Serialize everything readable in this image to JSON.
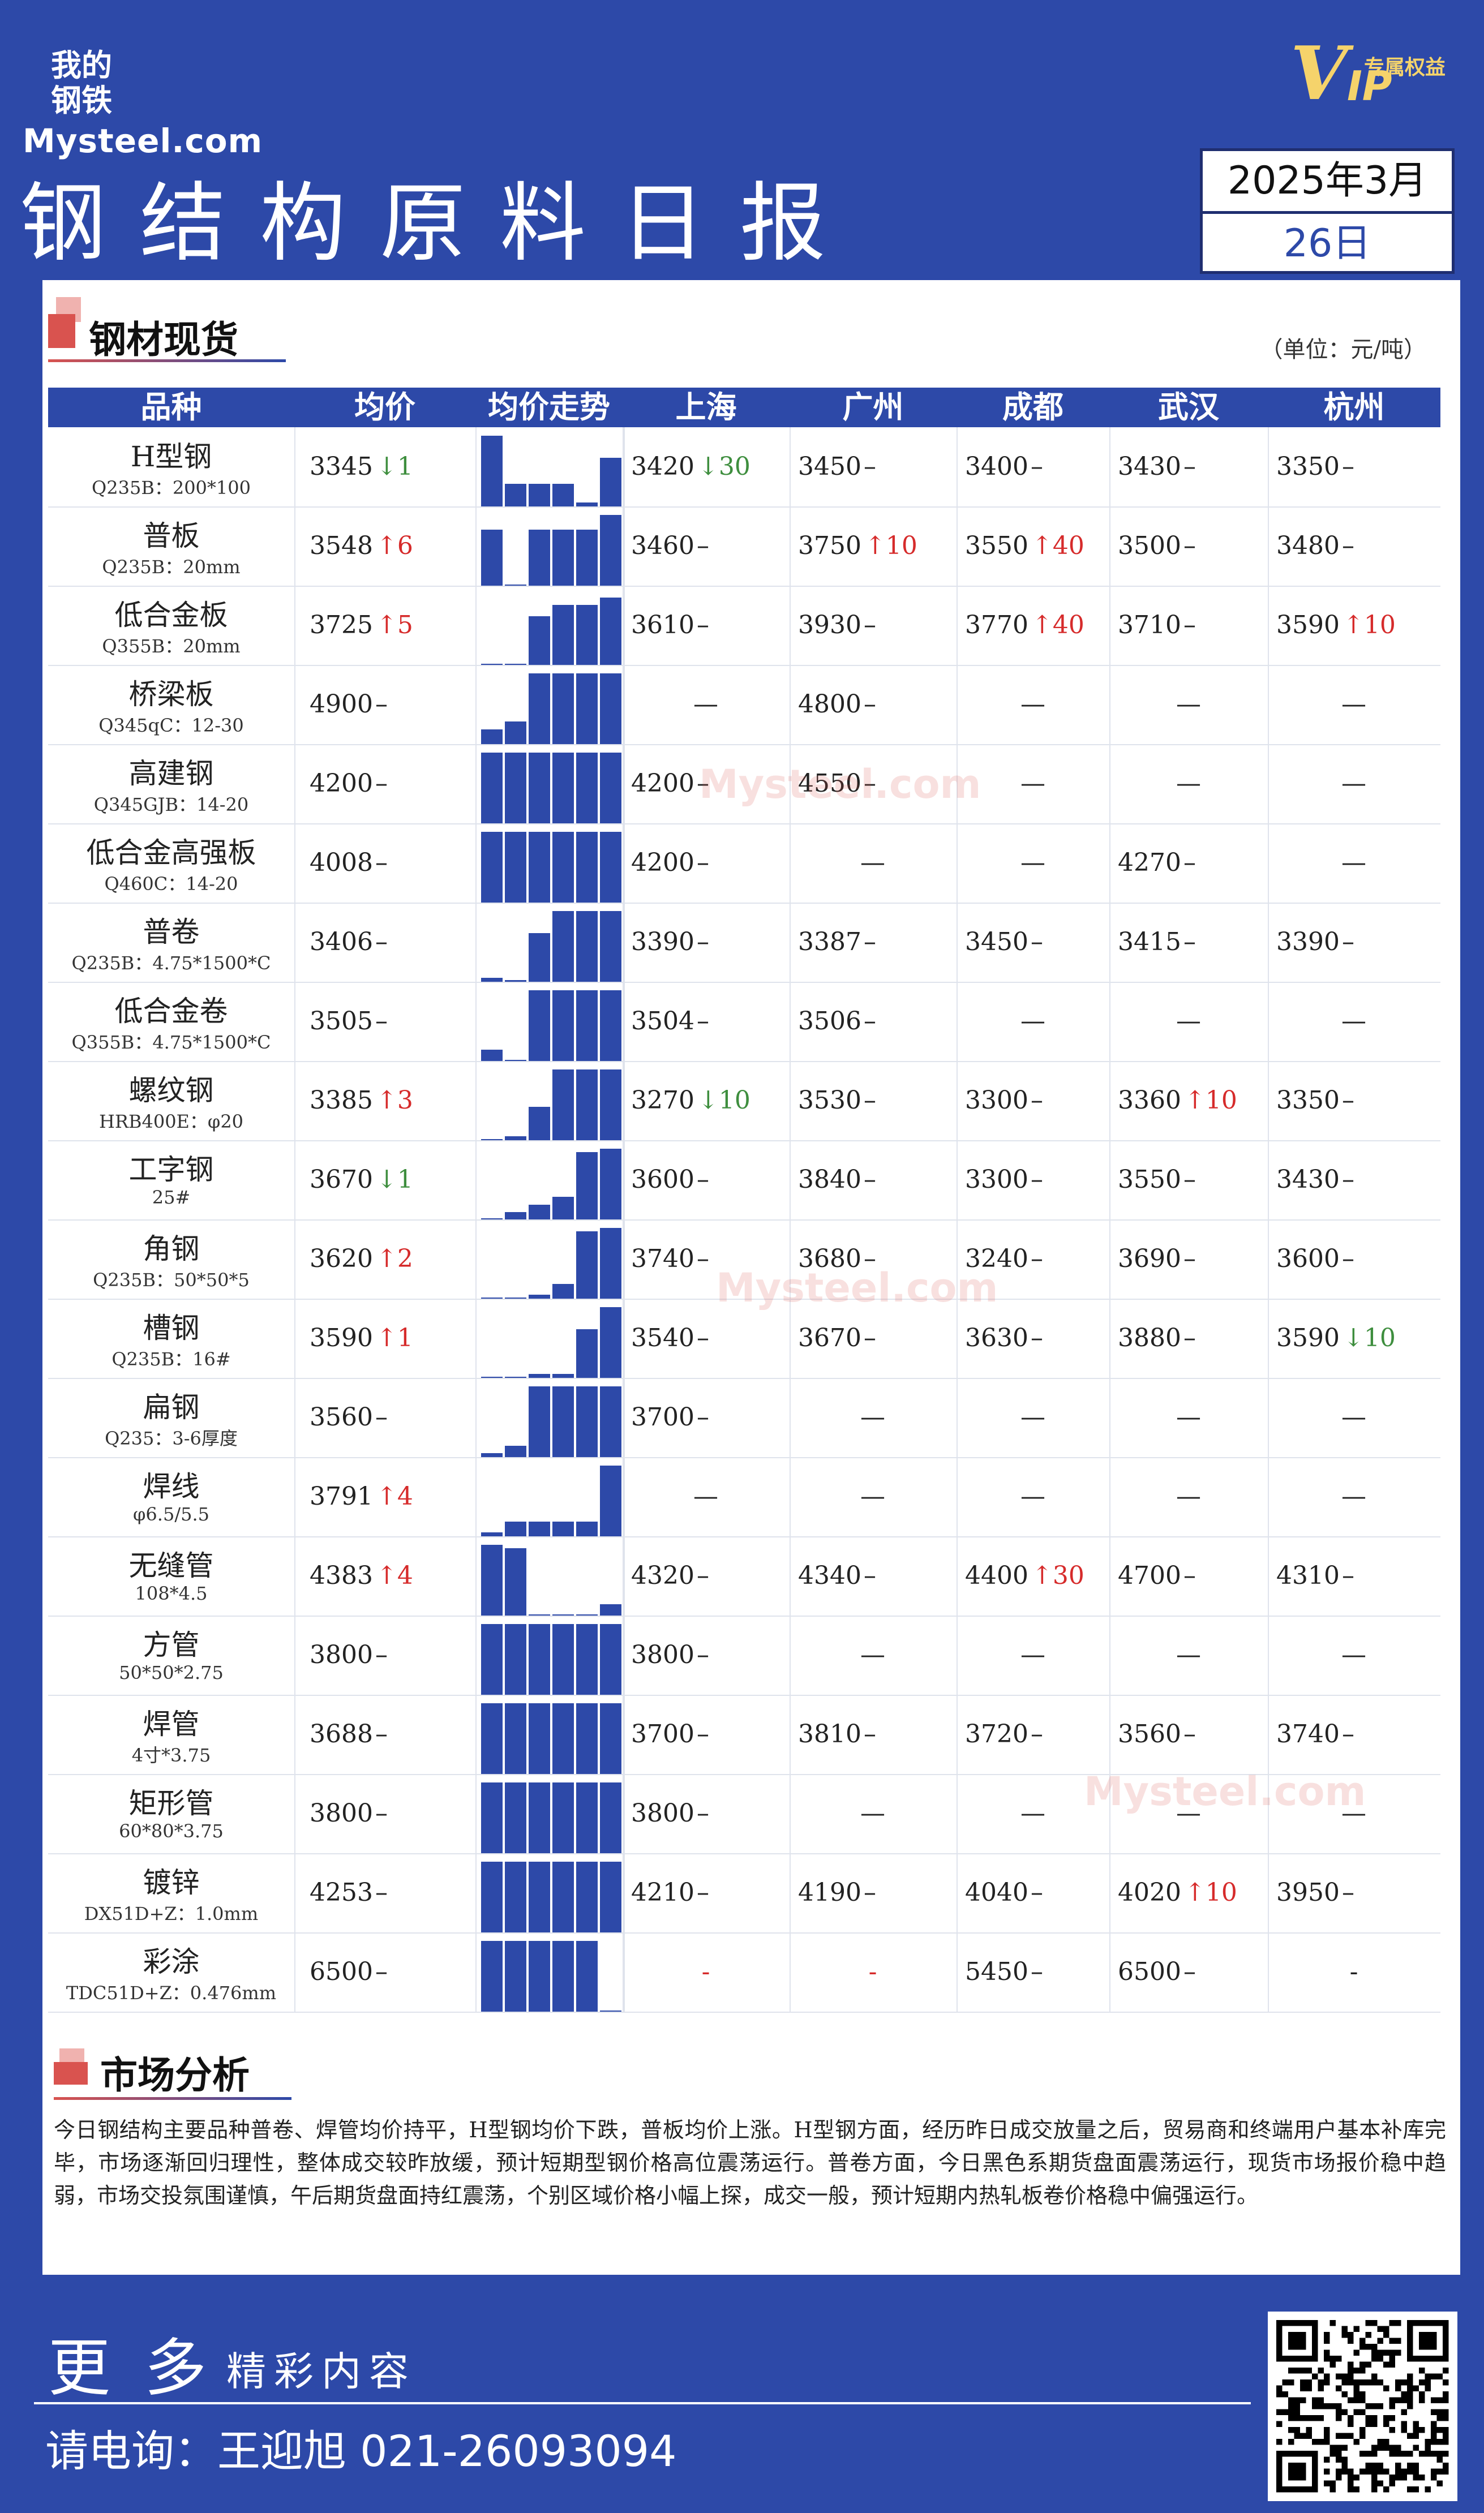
{
  "logo": {
    "line1": "我的",
    "line2": "钢铁",
    "en": "Mysteel.com"
  },
  "vip": {
    "letter_v": "V",
    "letters_ip": "IP",
    "label": "专属权益"
  },
  "title": "钢结构原料日报",
  "date": {
    "year_month": "2025年3月",
    "day": "26日"
  },
  "section1": {
    "title": "钢材现货",
    "unit": "（单位：元/吨）"
  },
  "table": {
    "headers": [
      "品种",
      "均价",
      "均价走势",
      "上海",
      "广州",
      "成都",
      "武汉",
      "杭州"
    ],
    "rows": [
      {
        "name": "H型钢",
        "spec": "Q235B：200*100",
        "avg": {
          "v": "3345",
          "d": "1",
          "dir": "down"
        },
        "trend": [
          0.95,
          0.3,
          0.3,
          0.3,
          0.05,
          0.65
        ],
        "cells": [
          {
            "v": "3420",
            "d": "30",
            "dir": "down"
          },
          {
            "v": "3450",
            "d": "",
            "dir": "flat"
          },
          {
            "v": "3400",
            "d": "",
            "dir": "flat"
          },
          {
            "v": "3430",
            "d": "",
            "dir": "flat"
          },
          {
            "v": "3350",
            "d": "",
            "dir": "flat"
          }
        ]
      },
      {
        "name": "普板",
        "spec": "Q235B：20mm",
        "avg": {
          "v": "3548",
          "d": "6",
          "dir": "up"
        },
        "trend": [
          0.75,
          0.0,
          0.75,
          0.75,
          0.75,
          0.95
        ],
        "cells": [
          {
            "v": "3460",
            "d": "",
            "dir": "flat"
          },
          {
            "v": "3750",
            "d": "10",
            "dir": "up"
          },
          {
            "v": "3550",
            "d": "40",
            "dir": "up"
          },
          {
            "v": "3500",
            "d": "",
            "dir": "flat"
          },
          {
            "v": "3480",
            "d": "",
            "dir": "flat"
          }
        ]
      },
      {
        "name": "低合金板",
        "spec": "Q355B：20mm",
        "avg": {
          "v": "3725",
          "d": "5",
          "dir": "up"
        },
        "trend": [
          0.0,
          0.0,
          0.65,
          0.8,
          0.8,
          0.9
        ],
        "cells": [
          {
            "v": "3610",
            "d": "",
            "dir": "flat"
          },
          {
            "v": "3930",
            "d": "",
            "dir": "flat"
          },
          {
            "v": "3770",
            "d": "40",
            "dir": "up"
          },
          {
            "v": "3710",
            "d": "",
            "dir": "flat"
          },
          {
            "v": "3590",
            "d": "10",
            "dir": "up"
          }
        ]
      },
      {
        "name": "桥梁板",
        "spec": "Q345qC：12-30",
        "avg": {
          "v": "4900",
          "d": "",
          "dir": "flat"
        },
        "trend": [
          0.2,
          0.3,
          0.95,
          0.95,
          0.95,
          0.95
        ],
        "cells": [
          {
            "v": "—",
            "d": "",
            "dir": "none"
          },
          {
            "v": "4800",
            "d": "",
            "dir": "flat"
          },
          {
            "v": "—",
            "d": "",
            "dir": "none"
          },
          {
            "v": "—",
            "d": "",
            "dir": "none"
          },
          {
            "v": "—",
            "d": "",
            "dir": "none"
          }
        ]
      },
      {
        "name": "高建钢",
        "spec": "Q345GJB：14-20",
        "avg": {
          "v": "4200",
          "d": "",
          "dir": "flat"
        },
        "trend": [
          0.95,
          0.95,
          0.95,
          0.95,
          0.95,
          0.95
        ],
        "cells": [
          {
            "v": "4200",
            "d": "",
            "dir": "flat"
          },
          {
            "v": "4550",
            "d": "",
            "dir": "flat"
          },
          {
            "v": "—",
            "d": "",
            "dir": "none"
          },
          {
            "v": "—",
            "d": "",
            "dir": "none"
          },
          {
            "v": "—",
            "d": "",
            "dir": "none"
          }
        ]
      },
      {
        "name": "低合金高强板",
        "spec": "Q460C：14-20",
        "avg": {
          "v": "4008",
          "d": "",
          "dir": "flat"
        },
        "trend": [
          0.95,
          0.95,
          0.95,
          0.95,
          0.95,
          0.95
        ],
        "cells": [
          {
            "v": "4200",
            "d": "",
            "dir": "flat"
          },
          {
            "v": "—",
            "d": "",
            "dir": "none"
          },
          {
            "v": "—",
            "d": "",
            "dir": "none"
          },
          {
            "v": "4270",
            "d": "",
            "dir": "flat"
          },
          {
            "v": "—",
            "d": "",
            "dir": "none"
          }
        ]
      },
      {
        "name": "普卷",
        "spec": "Q235B：4.75*1500*C",
        "avg": {
          "v": "3406",
          "d": "",
          "dir": "flat"
        },
        "trend": [
          0.05,
          0.02,
          0.65,
          0.95,
          0.95,
          0.95
        ],
        "cells": [
          {
            "v": "3390",
            "d": "",
            "dir": "flat"
          },
          {
            "v": "3387",
            "d": "",
            "dir": "flat"
          },
          {
            "v": "3450",
            "d": "",
            "dir": "flat"
          },
          {
            "v": "3415",
            "d": "",
            "dir": "flat"
          },
          {
            "v": "3390",
            "d": "",
            "dir": "flat"
          }
        ]
      },
      {
        "name": "低合金卷",
        "spec": "Q355B：4.75*1500*C",
        "avg": {
          "v": "3505",
          "d": "",
          "dir": "flat"
        },
        "trend": [
          0.15,
          0.0,
          0.95,
          0.95,
          0.95,
          0.95
        ],
        "cells": [
          {
            "v": "3504",
            "d": "",
            "dir": "flat"
          },
          {
            "v": "3506",
            "d": "",
            "dir": "flat"
          },
          {
            "v": "—",
            "d": "",
            "dir": "none"
          },
          {
            "v": "—",
            "d": "",
            "dir": "none"
          },
          {
            "v": "—",
            "d": "",
            "dir": "none"
          }
        ]
      },
      {
        "name": "螺纹钢",
        "spec": "HRB400E：φ20",
        "avg": {
          "v": "3385",
          "d": "3",
          "dir": "up"
        },
        "trend": [
          0.0,
          0.05,
          0.45,
          0.95,
          0.95,
          0.95
        ],
        "cells": [
          {
            "v": "3270",
            "d": "10",
            "dir": "down"
          },
          {
            "v": "3530",
            "d": "",
            "dir": "flat"
          },
          {
            "v": "3300",
            "d": "",
            "dir": "flat"
          },
          {
            "v": "3360",
            "d": "10",
            "dir": "up"
          },
          {
            "v": "3350",
            "d": "",
            "dir": "flat"
          }
        ]
      },
      {
        "name": "工字钢",
        "spec": "25#",
        "avg": {
          "v": "3670",
          "d": "1",
          "dir": "down"
        },
        "trend": [
          0.0,
          0.1,
          0.2,
          0.3,
          0.9,
          0.95
        ],
        "cells": [
          {
            "v": "3600",
            "d": "",
            "dir": "flat"
          },
          {
            "v": "3840",
            "d": "",
            "dir": "flat"
          },
          {
            "v": "3300",
            "d": "",
            "dir": "flat"
          },
          {
            "v": "3550",
            "d": "",
            "dir": "flat"
          },
          {
            "v": "3430",
            "d": "",
            "dir": "flat"
          }
        ]
      },
      {
        "name": "角钢",
        "spec": "Q235B：50*50*5",
        "avg": {
          "v": "3620",
          "d": "2",
          "dir": "up"
        },
        "trend": [
          0.0,
          0.0,
          0.05,
          0.2,
          0.9,
          0.95
        ],
        "cells": [
          {
            "v": "3740",
            "d": "",
            "dir": "flat"
          },
          {
            "v": "3680",
            "d": "",
            "dir": "flat"
          },
          {
            "v": "3240",
            "d": "",
            "dir": "flat"
          },
          {
            "v": "3690",
            "d": "",
            "dir": "flat"
          },
          {
            "v": "3600",
            "d": "",
            "dir": "flat"
          }
        ]
      },
      {
        "name": "槽钢",
        "spec": "Q235B：16#",
        "avg": {
          "v": "3590",
          "d": "1",
          "dir": "up"
        },
        "trend": [
          0.0,
          0.0,
          0.05,
          0.05,
          0.65,
          0.95
        ],
        "cells": [
          {
            "v": "3540",
            "d": "",
            "dir": "flat"
          },
          {
            "v": "3670",
            "d": "",
            "dir": "flat"
          },
          {
            "v": "3630",
            "d": "",
            "dir": "flat"
          },
          {
            "v": "3880",
            "d": "",
            "dir": "flat"
          },
          {
            "v": "3590",
            "d": "10",
            "dir": "down"
          }
        ]
      },
      {
        "name": "扁钢",
        "spec": "Q235：3-6厚度",
        "avg": {
          "v": "3560",
          "d": "",
          "dir": "flat"
        },
        "trend": [
          0.05,
          0.15,
          0.95,
          0.95,
          0.95,
          0.95
        ],
        "cells": [
          {
            "v": "3700",
            "d": "",
            "dir": "flat"
          },
          {
            "v": "—",
            "d": "",
            "dir": "none"
          },
          {
            "v": "—",
            "d": "",
            "dir": "none"
          },
          {
            "v": "—",
            "d": "",
            "dir": "none"
          },
          {
            "v": "—",
            "d": "",
            "dir": "none"
          }
        ]
      },
      {
        "name": "焊线",
        "spec": "φ6.5/5.5",
        "avg": {
          "v": "3791",
          "d": "4",
          "dir": "up"
        },
        "trend": [
          0.05,
          0.2,
          0.2,
          0.2,
          0.2,
          0.95
        ],
        "cells": [
          {
            "v": "—",
            "d": "",
            "dir": "none"
          },
          {
            "v": "—",
            "d": "",
            "dir": "none"
          },
          {
            "v": "—",
            "d": "",
            "dir": "none"
          },
          {
            "v": "—",
            "d": "",
            "dir": "none"
          },
          {
            "v": "—",
            "d": "",
            "dir": "none"
          }
        ]
      },
      {
        "name": "无缝管",
        "spec": "108*4.5",
        "avg": {
          "v": "4383",
          "d": "4",
          "dir": "up"
        },
        "trend": [
          0.95,
          0.9,
          0.0,
          0.0,
          0.0,
          0.15
        ],
        "cells": [
          {
            "v": "4320",
            "d": "",
            "dir": "flat"
          },
          {
            "v": "4340",
            "d": "",
            "dir": "flat"
          },
          {
            "v": "4400",
            "d": "30",
            "dir": "up"
          },
          {
            "v": "4700",
            "d": "",
            "dir": "flat"
          },
          {
            "v": "4310",
            "d": "",
            "dir": "flat"
          }
        ]
      },
      {
        "name": "方管",
        "spec": "50*50*2.75",
        "avg": {
          "v": "3800",
          "d": "",
          "dir": "flat"
        },
        "trend": [
          0.95,
          0.95,
          0.95,
          0.95,
          0.95,
          0.95
        ],
        "cells": [
          {
            "v": "3800",
            "d": "",
            "dir": "flat"
          },
          {
            "v": "—",
            "d": "",
            "dir": "none"
          },
          {
            "v": "—",
            "d": "",
            "dir": "none"
          },
          {
            "v": "—",
            "d": "",
            "dir": "none"
          },
          {
            "v": "—",
            "d": "",
            "dir": "none"
          }
        ]
      },
      {
        "name": "焊管",
        "spec": "4寸*3.75",
        "avg": {
          "v": "3688",
          "d": "",
          "dir": "flat"
        },
        "trend": [
          0.95,
          0.95,
          0.95,
          0.95,
          0.95,
          0.95
        ],
        "cells": [
          {
            "v": "3700",
            "d": "",
            "dir": "flat"
          },
          {
            "v": "3810",
            "d": "",
            "dir": "flat"
          },
          {
            "v": "3720",
            "d": "",
            "dir": "flat"
          },
          {
            "v": "3560",
            "d": "",
            "dir": "flat"
          },
          {
            "v": "3740",
            "d": "",
            "dir": "flat"
          }
        ]
      },
      {
        "name": "矩形管",
        "spec": "60*80*3.75",
        "avg": {
          "v": "3800",
          "d": "",
          "dir": "flat"
        },
        "trend": [
          0.95,
          0.95,
          0.95,
          0.95,
          0.95,
          0.95
        ],
        "cells": [
          {
            "v": "3800",
            "d": "",
            "dir": "flat"
          },
          {
            "v": "—",
            "d": "",
            "dir": "none"
          },
          {
            "v": "—",
            "d": "",
            "dir": "none"
          },
          {
            "v": "—",
            "d": "",
            "dir": "none"
          },
          {
            "v": "—",
            "d": "",
            "dir": "none"
          }
        ]
      },
      {
        "name": "镀锌",
        "spec": "DX51D+Z：1.0mm",
        "avg": {
          "v": "4253",
          "d": "",
          "dir": "flat"
        },
        "trend": [
          0.95,
          0.95,
          0.95,
          0.95,
          0.95,
          0.95
        ],
        "cells": [
          {
            "v": "4210",
            "d": "",
            "dir": "flat"
          },
          {
            "v": "4190",
            "d": "",
            "dir": "flat"
          },
          {
            "v": "4040",
            "d": "",
            "dir": "flat"
          },
          {
            "v": "4020",
            "d": "10",
            "dir": "up"
          },
          {
            "v": "3950",
            "d": "",
            "dir": "flat"
          }
        ]
      },
      {
        "name": "彩涂",
        "spec": "TDC51D+Z：0.476mm",
        "avg": {
          "v": "6500",
          "d": "",
          "dir": "flat"
        },
        "trend": [
          0.95,
          0.95,
          0.95,
          0.95,
          0.95,
          0.0
        ],
        "cells": [
          {
            "v": "-",
            "d": "",
            "dir": "missing"
          },
          {
            "v": "-",
            "d": "",
            "dir": "missing"
          },
          {
            "v": "5450",
            "d": "",
            "dir": "flat"
          },
          {
            "v": "6500",
            "d": "",
            "dir": "flat"
          },
          {
            "v": "-",
            "d": "",
            "dir": "none"
          }
        ]
      }
    ]
  },
  "section2": {
    "title": "市场分析"
  },
  "analysis": "今日钢结构主要品种普卷、焊管均价持平，H型钢均价下跌，普板均价上涨。H型钢方面，经历昨日成交放量之后，贸易商和终端用户基本补库完毕，市场逐渐回归理性，整体成交较昨放缓，预计短期型钢价格高位震荡运行。普卷方面，今日黑色系期货盘面震荡运行，现货市场报价稳中趋弱，市场交投氛围谨慎，午后期货盘面持红震荡，个别区域价格小幅上探，成交一般，预计短期内热轧板卷价格稳中偏强运行。",
  "footer": {
    "more_big": "更多",
    "more_small": "精彩内容",
    "phone": "请电询：王迎旭  021-26093094"
  },
  "colors": {
    "brand_blue": "#2d49a8",
    "up_red": "#d62b2b",
    "down_green": "#3e8e3e",
    "accent_red": "#d9534f"
  },
  "icons": {
    "qr": "qr-code-icon",
    "arrow_up": "arrow-up-icon",
    "arrow_down": "arrow-down-icon"
  }
}
